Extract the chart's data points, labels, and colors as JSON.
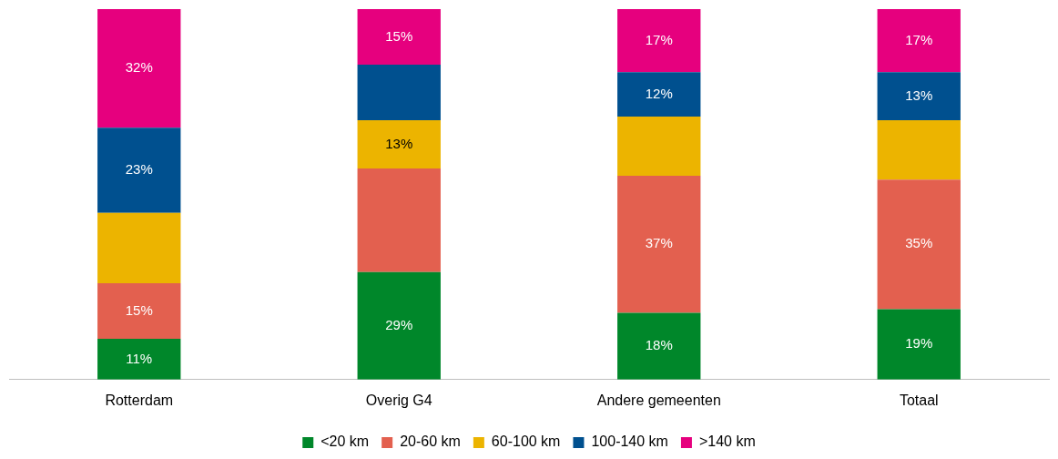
{
  "chart_data": {
    "type": "bar",
    "stacked": true,
    "categories": [
      "Rotterdam",
      "Overig G4",
      "Andere gemeenten",
      "Totaal"
    ],
    "series": [
      {
        "name": "<20 km",
        "color": "#00872a",
        "values": [
          11,
          29,
          18,
          19
        ],
        "value_labels": [
          "11%",
          "29%",
          "18%",
          "19%"
        ]
      },
      {
        "name": "20-60 km",
        "color": "#e3604f",
        "values": [
          15,
          28,
          37,
          35
        ],
        "value_labels": [
          "15%",
          null,
          "37%",
          "35%"
        ]
      },
      {
        "name": "60-100 km",
        "color": "#ecb400",
        "values": [
          19,
          13,
          16,
          16
        ],
        "value_labels": [
          null,
          "13%",
          null,
          null
        ]
      },
      {
        "name": "100-140 km",
        "color": "#00508f",
        "values": [
          23,
          15,
          12,
          13
        ],
        "value_labels": [
          "23%",
          null,
          "12%",
          "13%"
        ]
      },
      {
        "name": ">140 km",
        "color": "#e6007e",
        "values": [
          32,
          15,
          17,
          17
        ],
        "value_labels": [
          "32%",
          "15%",
          "17%",
          "17%"
        ]
      }
    ],
    "legend": "bottom"
  }
}
